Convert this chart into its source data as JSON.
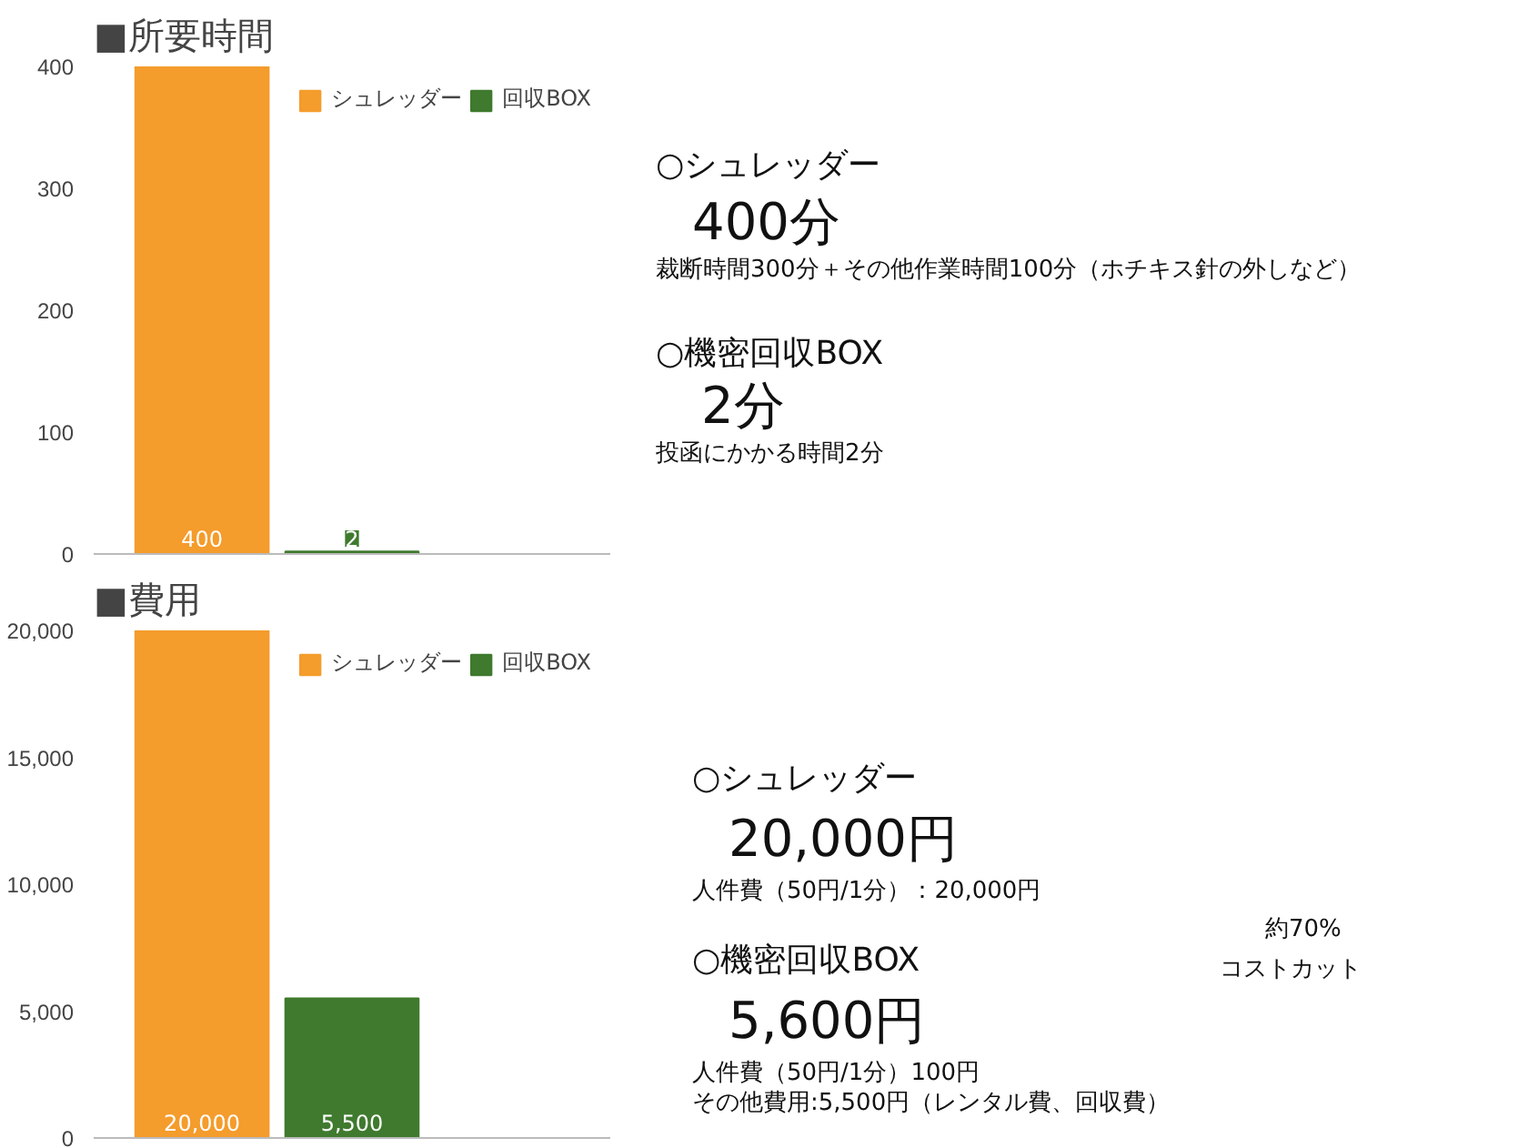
{
  "chart_data": [
    {
      "type": "bar",
      "title": "■所要時間",
      "categories": [
        null
      ],
      "series": [
        {
          "name": "シュレッダー",
          "color": "#f49c2c",
          "values": [
            400
          ]
        },
        {
          "name": "回収BOX",
          "color": "#3f7a2e",
          "values": [
            2
          ]
        }
      ],
      "ylim": [
        0,
        400
      ],
      "yticks": [
        0,
        100,
        200,
        300,
        400
      ],
      "grid": false,
      "legend": "top right",
      "data_labels": true
    },
    {
      "type": "other",
      "annotations": [
        "○シュレッダー",
        "400分",
        "裁断時間300分＋その他作業時間100分（ホチキス針の外しなど）",
        "○機密回収BOX",
        "2分",
        "投函にかかる時間2分"
      ]
    },
    {
      "type": "bar",
      "title": "■費用",
      "categories": [
        null
      ],
      "series": [
        {
          "name": "シュレッダー",
          "color": "#f49c2c",
          "values": [
            20000
          ],
          "value_labels": [
            "20,000"
          ]
        },
        {
          "name": "回収BOX",
          "color": "#3f7a2e",
          "values": [
            5500
          ],
          "value_labels": [
            "5,500"
          ]
        }
      ],
      "ylim": [
        0,
        20000
      ],
      "yticks": [
        {
          "value": 0,
          "label": "0"
        },
        {
          "value": 5000,
          "label": "5,000"
        },
        {
          "value": 10000,
          "label": "10,000"
        },
        {
          "value": 15000,
          "label": "15,000"
        },
        {
          "value": 20000,
          "label": "20,000"
        }
      ],
      "grid": false,
      "legend": "top right"
    },
    {
      "type": "other",
      "annotations": [
        "○シュレッダー",
        "20,000円",
        "人件費（50円/1分）：20,000円",
        "○機密回収BOX",
        "5,600円",
        "人件費（50円/1分）100円",
        "その他費用:5,500円（レンタル費、回収費）",
        "約70%",
        "コストカット"
      ]
    }
  ]
}
